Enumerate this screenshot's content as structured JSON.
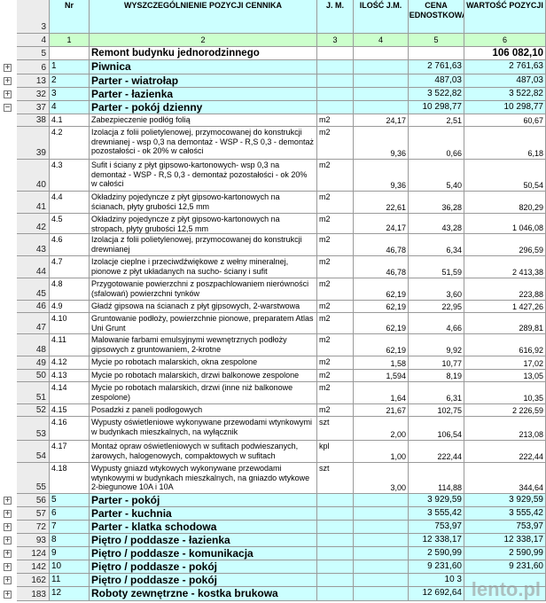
{
  "header": {
    "row_num": "3",
    "cols": [
      "Nr",
      "WYSZCZEGÓLNIENIE POZYCJI CENNIKA",
      "J. M.",
      "ILOŚĆ J.M.",
      "CENA JEDNOSTKOWA",
      "WARTOŚĆ POZYCJI"
    ]
  },
  "col_numbers": {
    "row_num": "4",
    "cols": [
      "1",
      "2",
      "3",
      "4",
      "5",
      "6"
    ]
  },
  "rows": [
    {
      "row_num": "5",
      "desc": "Remont budynku jednorodzinnego",
      "value": "106 082,10"
    },
    {
      "row_num": "6",
      "nr": "1",
      "desc": "Piwnica",
      "price": "2 761,63",
      "value": "2 761,63"
    },
    {
      "row_num": "13",
      "nr": "2",
      "desc": "Parter - wiatrołap",
      "price": "487,03",
      "value": "487,03"
    },
    {
      "row_num": "32",
      "nr": "3",
      "desc": "Parter - łazienka",
      "price": "3 522,82",
      "value": "3 522,82"
    },
    {
      "row_num": "37",
      "nr": "4",
      "desc": "Parter - pokój dzienny",
      "price": "10 298,77",
      "value": "10 298,77"
    },
    {
      "row_num": "38",
      "nr": "4.1",
      "desc": "Zabezpieczenie podłóg folią",
      "jm": "m2",
      "qty": "24,17",
      "price": "2,51",
      "value": "60,67"
    },
    {
      "row_num": "39",
      "nr": "4.2",
      "desc": "Izolacja z folii polietylenowej, przymocowanej do konstrukcji drewnianej - wsp 0,3 na demontaż - WSP - R,S 0,3 - demontaż pozostałości - ok 20% w całości",
      "jm": "m2",
      "qty": "9,36",
      "price": "0,66",
      "value": "6,18"
    },
    {
      "row_num": "40",
      "nr": "4.3",
      "desc": "Sufit i ściany z płyt gipsowo-kartonowych- wsp 0,3 na demontaż - WSP - R,S 0,3 - demontaż pozostałości - ok 20% w całości",
      "jm": "m2",
      "qty": "9,36",
      "price": "5,40",
      "value": "50,54"
    },
    {
      "row_num": "41",
      "nr": "4.4",
      "desc": "Okładziny pojedyncze z płyt gipsowo-kartonowych na ścianach, płyty grubości 12,5 mm",
      "jm": "m2",
      "qty": "22,61",
      "price": "36,28",
      "value": "820,29"
    },
    {
      "row_num": "42",
      "nr": "4.5",
      "desc": "Okładziny pojedyncze z płyt gipsowo-kartonowych na stropach, płyty grubości 12,5 mm",
      "jm": "m2",
      "qty": "24,17",
      "price": "43,28",
      "value": "1 046,08"
    },
    {
      "row_num": "43",
      "nr": "4.6",
      "desc": "Izolacja z folii polietylenowej, przymocowanej do konstrukcji drewnianej",
      "jm": "m2",
      "qty": "46,78",
      "price": "6,34",
      "value": "296,59"
    },
    {
      "row_num": "44",
      "nr": "4.7",
      "desc": "Izolacje cieplne i przeciwdźwiękowe z wełny mineralnej, pionowe z płyt układanych na sucho- ściany i sufit",
      "jm": "m2",
      "qty": "46,78",
      "price": "51,59",
      "value": "2 413,38"
    },
    {
      "row_num": "45",
      "nr": "4.8",
      "desc": "Przygotowanie powierzchni z poszpachlowaniem nierówności (sfalowań) powierzchni tynków",
      "jm": "m2",
      "qty": "62,19",
      "price": "3,60",
      "value": "223,88"
    },
    {
      "row_num": "46",
      "nr": "4.9",
      "desc": "Gładź gipsowa na ścianach z płyt gipsowych, 2-warstwowa",
      "jm": "m2",
      "qty": "62,19",
      "price": "22,95",
      "value": "1 427,26"
    },
    {
      "row_num": "47",
      "nr": "4.10",
      "desc": "Gruntowanie podłoży, powierzchnie pionowe, preparatem Atlas Uni Grunt",
      "jm": "m2",
      "qty": "62,19",
      "price": "4,66",
      "value": "289,81"
    },
    {
      "row_num": "48",
      "nr": "4.11",
      "desc": "Malowanie farbami emulsyjnymi wewnętrznych podłoży gipsowych z gruntowaniem, 2-krotne",
      "jm": "m2",
      "qty": "62,19",
      "price": "9,92",
      "value": "616,92"
    },
    {
      "row_num": "49",
      "nr": "4.12",
      "desc": "Mycie po robotach malarskich, okna zespolone",
      "jm": "m2",
      "qty": "1,58",
      "price": "10,77",
      "value": "17,02"
    },
    {
      "row_num": "50",
      "nr": "4.13",
      "desc": "Mycie po robotach malarskich, drzwi balkonowe zespolone",
      "jm": "m2",
      "qty": "1,594",
      "price": "8,19",
      "value": "13,05"
    },
    {
      "row_num": "51",
      "nr": "4.14",
      "desc": "Mycie po robotach malarskich, drzwi (inne niż balkonowe zespolone)",
      "jm": "m2",
      "qty": "1,64",
      "price": "6,31",
      "value": "10,35"
    },
    {
      "row_num": "52",
      "nr": "4.15",
      "desc": "Posadzki z paneli podłogowych",
      "jm": "m2",
      "qty": "21,67",
      "price": "102,75",
      "value": "2 226,59"
    },
    {
      "row_num": "53",
      "nr": "4.16",
      "desc": "Wypusty oświetleniowe wykonywane przewodami wtynkowymi w budynkach mieszkalnych, na wyłącznik",
      "jm": "szt",
      "qty": "2,00",
      "price": "106,54",
      "value": "213,08"
    },
    {
      "row_num": "54",
      "nr": "4.17",
      "desc": "Montaż opraw oświetleniowych w sufitach podwieszanych, żarowych, halogenowych, compaktowych w sufitach",
      "jm": "kpl",
      "qty": "1,00",
      "price": "222,44",
      "value": "222,44"
    },
    {
      "row_num": "55",
      "nr": "4.18",
      "desc": "Wypusty gniazd wtykowych wykonywane przewodami wtynkowymi w budynkach mieszkalnych, na gniazdo wtykowe 2-biegunowe 10A i 10A",
      "jm": "szt",
      "qty": "3,00",
      "price": "114,88",
      "value": "344,64"
    },
    {
      "row_num": "56",
      "nr": "5",
      "desc": "Parter - pokój",
      "price": "3 929,59",
      "value": "3 929,59"
    },
    {
      "row_num": "57",
      "nr": "6",
      "desc": "Parter - kuchnia",
      "price": "3 555,42",
      "value": "3 555,42"
    },
    {
      "row_num": "72",
      "nr": "7",
      "desc": "Parter - klatka schodowa",
      "price": "753,97",
      "value": "753,97"
    },
    {
      "row_num": "93",
      "nr": "8",
      "desc": "Piętro / poddasze - łazienka",
      "price": "12 338,17",
      "value": "12 338,17"
    },
    {
      "row_num": "124",
      "nr": "9",
      "desc": "Piętro / poddasze - komunikacja",
      "price": "2 590,99",
      "value": "2 590,99"
    },
    {
      "row_num": "142",
      "nr": "10",
      "desc": "Piętro / poddasze - pokój",
      "price": "9 231,60",
      "value": "9 231,60"
    },
    {
      "row_num": "162",
      "nr": "11",
      "desc": "Piętro / poddasze - pokój",
      "price": "10 3"
    },
    {
      "row_num": "183",
      "nr": "12",
      "desc": "Roboty zewnętrzne - kostka brukowa",
      "price": "12 692,64"
    }
  ],
  "watermark": "lento.pl"
}
